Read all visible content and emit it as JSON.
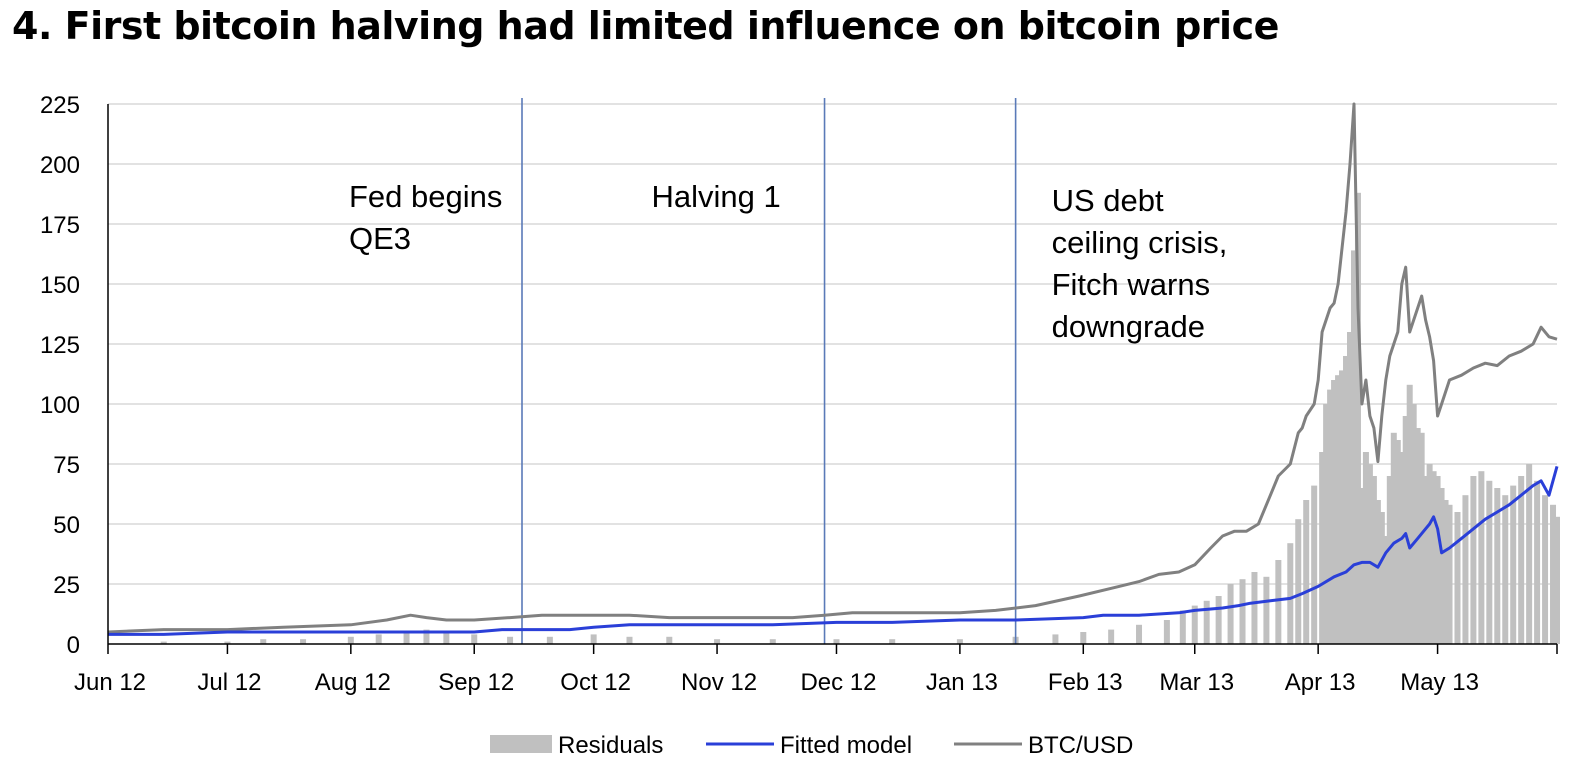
{
  "title": "4. First bitcoin halving had limited influence on bitcoin price",
  "chart_data": {
    "type": "line",
    "title": "4. First bitcoin halving had limited influence on bitcoin price",
    "xlabel": "",
    "ylabel": "",
    "ylim": [
      0,
      225
    ],
    "yticks": [
      0,
      25,
      50,
      75,
      100,
      125,
      150,
      175,
      200,
      225
    ],
    "y_tick_labels": [
      "0",
      "25",
      "50",
      "75",
      "100",
      "125",
      "150",
      "175",
      "200",
      "225"
    ],
    "x_range": [
      "2012-06-01",
      "2013-05-31"
    ],
    "x_ticks": [
      {
        "date": "2012-06-01",
        "label": "Jun 12"
      },
      {
        "date": "2012-07-01",
        "label": "Jul 12"
      },
      {
        "date": "2012-08-01",
        "label": "Aug 12"
      },
      {
        "date": "2012-09-01",
        "label": "Sep 12"
      },
      {
        "date": "2012-10-01",
        "label": "Oct 12"
      },
      {
        "date": "2012-11-01",
        "label": "Nov 12"
      },
      {
        "date": "2012-12-01",
        "label": "Dec 12"
      },
      {
        "date": "2013-01-01",
        "label": "Jan 13"
      },
      {
        "date": "2013-02-01",
        "label": "Feb 13"
      },
      {
        "date": "2013-03-01",
        "label": "Mar 13"
      },
      {
        "date": "2013-04-01",
        "label": "Apr 13"
      },
      {
        "date": "2013-05-01",
        "label": "May 13"
      }
    ],
    "grid": "horizontal",
    "legend_position": "bottom",
    "annotations": [
      {
        "date": "2012-09-13",
        "lines": [
          "Fed begins",
          "QE3"
        ],
        "text_align": "left"
      },
      {
        "date": "2012-11-28",
        "lines": [
          "Halving 1"
        ],
        "text_align": "left"
      },
      {
        "date": "2013-01-15",
        "lines": [
          "US debt",
          "ceiling crisis,",
          "Fitch warns",
          "downgrade"
        ],
        "text_align": "right"
      }
    ],
    "series": [
      {
        "name": "Residuals",
        "type": "bar",
        "color": "#c0c0c0",
        "points": [
          [
            "2012-06-15",
            1
          ],
          [
            "2012-07-01",
            1
          ],
          [
            "2012-07-10",
            2
          ],
          [
            "2012-07-20",
            2
          ],
          [
            "2012-08-01",
            3
          ],
          [
            "2012-08-08",
            4
          ],
          [
            "2012-08-15",
            5
          ],
          [
            "2012-08-20",
            6
          ],
          [
            "2012-08-25",
            5
          ],
          [
            "2012-09-01",
            4
          ],
          [
            "2012-09-10",
            3
          ],
          [
            "2012-09-20",
            3
          ],
          [
            "2012-10-01",
            4
          ],
          [
            "2012-10-10",
            3
          ],
          [
            "2012-10-20",
            3
          ],
          [
            "2012-11-01",
            2
          ],
          [
            "2012-11-15",
            2
          ],
          [
            "2012-12-01",
            2
          ],
          [
            "2012-12-15",
            2
          ],
          [
            "2013-01-01",
            2
          ],
          [
            "2013-01-15",
            3
          ],
          [
            "2013-01-25",
            4
          ],
          [
            "2013-02-01",
            5
          ],
          [
            "2013-02-08",
            6
          ],
          [
            "2013-02-15",
            8
          ],
          [
            "2013-02-22",
            10
          ],
          [
            "2013-02-26",
            14
          ],
          [
            "2013-03-01",
            16
          ],
          [
            "2013-03-04",
            18
          ],
          [
            "2013-03-07",
            20
          ],
          [
            "2013-03-10",
            25
          ],
          [
            "2013-03-13",
            27
          ],
          [
            "2013-03-16",
            30
          ],
          [
            "2013-03-19",
            28
          ],
          [
            "2013-03-22",
            35
          ],
          [
            "2013-03-25",
            42
          ],
          [
            "2013-03-27",
            52
          ],
          [
            "2013-03-29",
            60
          ],
          [
            "2013-03-31",
            66
          ],
          [
            "2013-04-02",
            80
          ],
          [
            "2013-04-03",
            100
          ],
          [
            "2013-04-04",
            106
          ],
          [
            "2013-04-05",
            110
          ],
          [
            "2013-04-06",
            112
          ],
          [
            "2013-04-07",
            114
          ],
          [
            "2013-04-08",
            120
          ],
          [
            "2013-04-09",
            130
          ],
          [
            "2013-04-10",
            164
          ],
          [
            "2013-04-11",
            188
          ],
          [
            "2013-04-12",
            65
          ],
          [
            "2013-04-13",
            80
          ],
          [
            "2013-04-14",
            75
          ],
          [
            "2013-04-15",
            70
          ],
          [
            "2013-04-16",
            60
          ],
          [
            "2013-04-17",
            55
          ],
          [
            "2013-04-18",
            45
          ],
          [
            "2013-04-19",
            70
          ],
          [
            "2013-04-20",
            88
          ],
          [
            "2013-04-21",
            85
          ],
          [
            "2013-04-22",
            80
          ],
          [
            "2013-04-23",
            95
          ],
          [
            "2013-04-24",
            108
          ],
          [
            "2013-04-25",
            100
          ],
          [
            "2013-04-26",
            90
          ],
          [
            "2013-04-27",
            88
          ],
          [
            "2013-04-28",
            70
          ],
          [
            "2013-04-29",
            75
          ],
          [
            "2013-04-30",
            72
          ],
          [
            "2013-05-01",
            70
          ],
          [
            "2013-05-02",
            65
          ],
          [
            "2013-05-03",
            60
          ],
          [
            "2013-05-04",
            58
          ],
          [
            "2013-05-06",
            55
          ],
          [
            "2013-05-08",
            62
          ],
          [
            "2013-05-10",
            70
          ],
          [
            "2013-05-12",
            72
          ],
          [
            "2013-05-14",
            68
          ],
          [
            "2013-05-16",
            65
          ],
          [
            "2013-05-18",
            62
          ],
          [
            "2013-05-20",
            66
          ],
          [
            "2013-05-22",
            70
          ],
          [
            "2013-05-24",
            75
          ],
          [
            "2013-05-26",
            68
          ],
          [
            "2013-05-28",
            62
          ],
          [
            "2013-05-30",
            58
          ],
          [
            "2013-05-31",
            53
          ]
        ]
      },
      {
        "name": "Fitted model",
        "type": "line",
        "color": "#2a3fd8",
        "points": [
          [
            "2012-06-01",
            4
          ],
          [
            "2012-06-15",
            4
          ],
          [
            "2012-07-01",
            5
          ],
          [
            "2012-07-15",
            5
          ],
          [
            "2012-08-01",
            5
          ],
          [
            "2012-08-15",
            5
          ],
          [
            "2012-09-01",
            5
          ],
          [
            "2012-09-08",
            6
          ],
          [
            "2012-09-15",
            6
          ],
          [
            "2012-09-25",
            6
          ],
          [
            "2012-10-01",
            7
          ],
          [
            "2012-10-10",
            8
          ],
          [
            "2012-10-20",
            8
          ],
          [
            "2012-11-01",
            8
          ],
          [
            "2012-11-15",
            8
          ],
          [
            "2012-12-01",
            9
          ],
          [
            "2012-12-15",
            9
          ],
          [
            "2013-01-01",
            10
          ],
          [
            "2013-01-15",
            10
          ],
          [
            "2013-02-01",
            11
          ],
          [
            "2013-02-06",
            12
          ],
          [
            "2013-02-15",
            12
          ],
          [
            "2013-02-25",
            13
          ],
          [
            "2013-03-01",
            14
          ],
          [
            "2013-03-08",
            15
          ],
          [
            "2013-03-12",
            16
          ],
          [
            "2013-03-15",
            17
          ],
          [
            "2013-03-20",
            18
          ],
          [
            "2013-03-25",
            19
          ],
          [
            "2013-03-28",
            21
          ],
          [
            "2013-04-01",
            24
          ],
          [
            "2013-04-05",
            28
          ],
          [
            "2013-04-08",
            30
          ],
          [
            "2013-04-10",
            33
          ],
          [
            "2013-04-12",
            34
          ],
          [
            "2013-04-14",
            34
          ],
          [
            "2013-04-16",
            32
          ],
          [
            "2013-04-18",
            38
          ],
          [
            "2013-04-20",
            42
          ],
          [
            "2013-04-22",
            44
          ],
          [
            "2013-04-23",
            46
          ],
          [
            "2013-04-24",
            40
          ],
          [
            "2013-04-26",
            44
          ],
          [
            "2013-04-28",
            48
          ],
          [
            "2013-04-29",
            50
          ],
          [
            "2013-04-30",
            53
          ],
          [
            "2013-05-01",
            48
          ],
          [
            "2013-05-02",
            38
          ],
          [
            "2013-05-04",
            40
          ],
          [
            "2013-05-07",
            44
          ],
          [
            "2013-05-10",
            48
          ],
          [
            "2013-05-13",
            52
          ],
          [
            "2013-05-16",
            55
          ],
          [
            "2013-05-19",
            58
          ],
          [
            "2013-05-22",
            62
          ],
          [
            "2013-05-25",
            66
          ],
          [
            "2013-05-27",
            68
          ],
          [
            "2013-05-29",
            62
          ],
          [
            "2013-05-31",
            74
          ]
        ]
      },
      {
        "name": "BTC/USD",
        "type": "line",
        "color": "#808080",
        "points": [
          [
            "2012-06-01",
            5
          ],
          [
            "2012-06-15",
            6
          ],
          [
            "2012-07-01",
            6
          ],
          [
            "2012-07-15",
            7
          ],
          [
            "2012-08-01",
            8
          ],
          [
            "2012-08-10",
            10
          ],
          [
            "2012-08-16",
            12
          ],
          [
            "2012-08-20",
            11
          ],
          [
            "2012-08-25",
            10
          ],
          [
            "2012-09-01",
            10
          ],
          [
            "2012-09-10",
            11
          ],
          [
            "2012-09-18",
            12
          ],
          [
            "2012-09-25",
            12
          ],
          [
            "2012-10-01",
            12
          ],
          [
            "2012-10-10",
            12
          ],
          [
            "2012-10-20",
            11
          ],
          [
            "2012-11-01",
            11
          ],
          [
            "2012-11-10",
            11
          ],
          [
            "2012-11-20",
            11
          ],
          [
            "2012-11-28",
            12
          ],
          [
            "2012-12-05",
            13
          ],
          [
            "2012-12-15",
            13
          ],
          [
            "2012-12-25",
            13
          ],
          [
            "2013-01-01",
            13
          ],
          [
            "2013-01-10",
            14
          ],
          [
            "2013-01-20",
            16
          ],
          [
            "2013-01-31",
            20
          ],
          [
            "2013-02-10",
            24
          ],
          [
            "2013-02-15",
            26
          ],
          [
            "2013-02-20",
            29
          ],
          [
            "2013-02-25",
            30
          ],
          [
            "2013-03-01",
            33
          ],
          [
            "2013-03-05",
            40
          ],
          [
            "2013-03-08",
            45
          ],
          [
            "2013-03-11",
            47
          ],
          [
            "2013-03-14",
            47
          ],
          [
            "2013-03-17",
            50
          ],
          [
            "2013-03-20",
            62
          ],
          [
            "2013-03-22",
            70
          ],
          [
            "2013-03-25",
            75
          ],
          [
            "2013-03-27",
            88
          ],
          [
            "2013-03-28",
            90
          ],
          [
            "2013-03-29",
            95
          ],
          [
            "2013-03-31",
            100
          ],
          [
            "2013-04-01",
            110
          ],
          [
            "2013-04-02",
            130
          ],
          [
            "2013-04-03",
            135
          ],
          [
            "2013-04-04",
            140
          ],
          [
            "2013-04-05",
            142
          ],
          [
            "2013-04-06",
            150
          ],
          [
            "2013-04-08",
            180
          ],
          [
            "2013-04-09",
            200
          ],
          [
            "2013-04-10",
            225
          ],
          [
            "2013-04-11",
            140
          ],
          [
            "2013-04-12",
            100
          ],
          [
            "2013-04-13",
            110
          ],
          [
            "2013-04-14",
            95
          ],
          [
            "2013-04-15",
            90
          ],
          [
            "2013-04-16",
            76
          ],
          [
            "2013-04-17",
            95
          ],
          [
            "2013-04-18",
            110
          ],
          [
            "2013-04-19",
            120
          ],
          [
            "2013-04-20",
            125
          ],
          [
            "2013-04-21",
            130
          ],
          [
            "2013-04-22",
            150
          ],
          [
            "2013-04-23",
            157
          ],
          [
            "2013-04-24",
            130
          ],
          [
            "2013-04-25",
            135
          ],
          [
            "2013-04-26",
            140
          ],
          [
            "2013-04-27",
            145
          ],
          [
            "2013-04-28",
            135
          ],
          [
            "2013-04-29",
            128
          ],
          [
            "2013-04-30",
            118
          ],
          [
            "2013-05-01",
            95
          ],
          [
            "2013-05-02",
            100
          ],
          [
            "2013-05-04",
            110
          ],
          [
            "2013-05-07",
            112
          ],
          [
            "2013-05-10",
            115
          ],
          [
            "2013-05-13",
            117
          ],
          [
            "2013-05-16",
            116
          ],
          [
            "2013-05-19",
            120
          ],
          [
            "2013-05-22",
            122
          ],
          [
            "2013-05-25",
            125
          ],
          [
            "2013-05-27",
            132
          ],
          [
            "2013-05-29",
            128
          ],
          [
            "2013-05-31",
            127
          ]
        ]
      }
    ]
  }
}
